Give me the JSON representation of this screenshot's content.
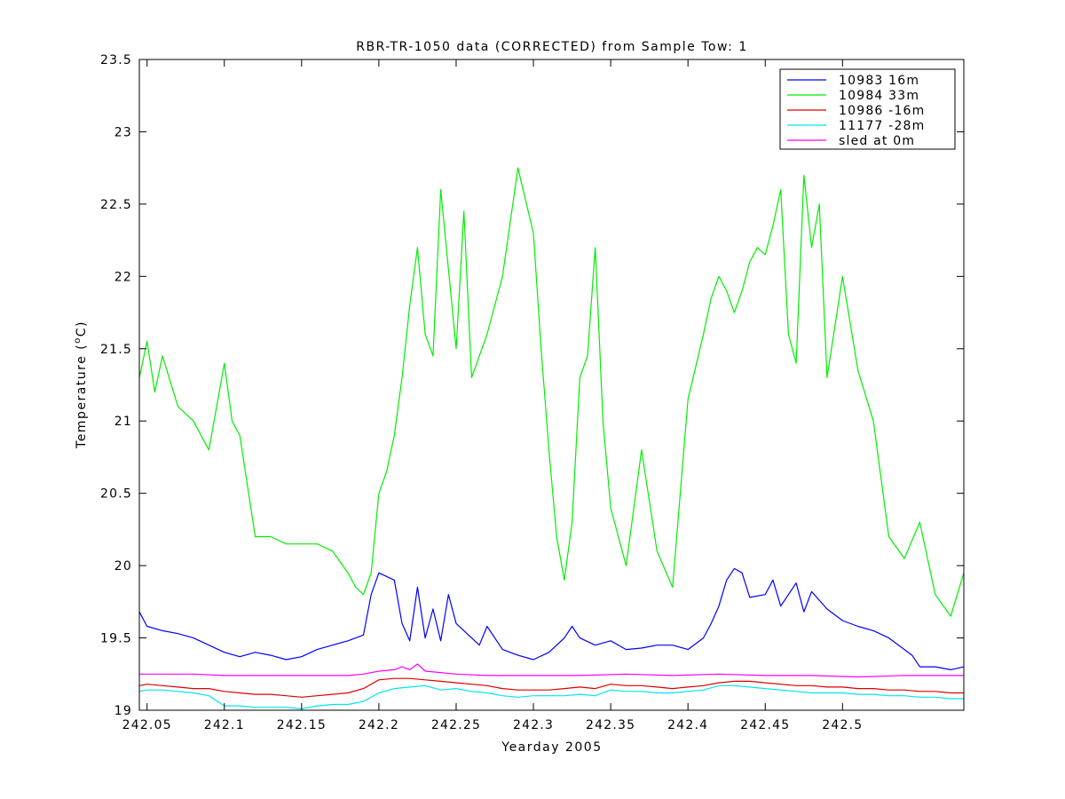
{
  "chart_data": {
    "type": "line",
    "title": "RBR-TR-1050 data (CORRECTED) from Sample Tow: 1",
    "xlabel": "Yearday 2005",
    "ylabel": "Temperature (°C)",
    "ylabel_parts": {
      "prefix": "Temperature (",
      "sup": "o",
      "suffix": "C)"
    },
    "xlim": [
      242.045,
      242.5785
    ],
    "ylim": [
      19,
      23.5
    ],
    "xticks": [
      242.05,
      242.1,
      242.15,
      242.2,
      242.25,
      242.3,
      242.35,
      242.4,
      242.45,
      242.5
    ],
    "xtick_labels": [
      "242.05",
      "242.1",
      "242.15",
      "242.2",
      "242.25",
      "242.3",
      "242.35",
      "242.4",
      "242.45",
      "242.5"
    ],
    "yticks": [
      19,
      19.5,
      20,
      20.5,
      21,
      21.5,
      22,
      22.5,
      23,
      23.5
    ],
    "ytick_labels": [
      "19",
      "19.5",
      "20",
      "20.5",
      "21",
      "21.5",
      "22",
      "22.5",
      "23",
      "23.5"
    ],
    "grid": false,
    "legend_position": "top-right",
    "series": [
      {
        "name": "10983 16m",
        "color": "#0000ff",
        "x": [
          242.045,
          242.05,
          242.06,
          242.07,
          242.08,
          242.09,
          242.1,
          242.11,
          242.12,
          242.13,
          242.14,
          242.15,
          242.16,
          242.17,
          242.18,
          242.19,
          242.195,
          242.2,
          242.21,
          242.215,
          242.22,
          242.225,
          242.23,
          242.235,
          242.24,
          242.245,
          242.25,
          242.26,
          242.265,
          242.27,
          242.28,
          242.29,
          242.3,
          242.31,
          242.32,
          242.325,
          242.33,
          242.34,
          242.35,
          242.36,
          242.37,
          242.38,
          242.39,
          242.4,
          242.41,
          242.415,
          242.42,
          242.425,
          242.43,
          242.435,
          242.44,
          242.45,
          242.455,
          242.46,
          242.47,
          242.475,
          242.48,
          242.49,
          242.5,
          242.51,
          242.52,
          242.53,
          242.54,
          242.545,
          242.55,
          242.56,
          242.57,
          242.5785
        ],
        "y": [
          19.68,
          19.58,
          19.55,
          19.53,
          19.5,
          19.45,
          19.4,
          19.37,
          19.4,
          19.38,
          19.35,
          19.37,
          19.42,
          19.45,
          19.48,
          19.52,
          19.8,
          19.95,
          19.9,
          19.6,
          19.48,
          19.85,
          19.5,
          19.7,
          19.48,
          19.8,
          19.6,
          19.5,
          19.45,
          19.58,
          19.42,
          19.38,
          19.35,
          19.4,
          19.5,
          19.58,
          19.5,
          19.45,
          19.48,
          19.42,
          19.43,
          19.45,
          19.45,
          19.42,
          19.5,
          19.6,
          19.72,
          19.9,
          19.98,
          19.95,
          19.78,
          19.8,
          19.9,
          19.72,
          19.88,
          19.68,
          19.82,
          19.7,
          19.62,
          19.58,
          19.55,
          19.5,
          19.42,
          19.38,
          19.3,
          19.3,
          19.28,
          19.3
        ]
      },
      {
        "name": "10984 33m",
        "color": "#00ee00",
        "x": [
          242.045,
          242.05,
          242.055,
          242.06,
          242.07,
          242.08,
          242.09,
          242.1,
          242.105,
          242.11,
          242.12,
          242.13,
          242.14,
          242.15,
          242.16,
          242.17,
          242.18,
          242.185,
          242.19,
          242.195,
          242.2,
          242.205,
          242.21,
          242.215,
          242.22,
          242.225,
          242.23,
          242.235,
          242.24,
          242.245,
          242.25,
          242.255,
          242.26,
          242.27,
          242.28,
          242.29,
          242.3,
          242.305,
          242.31,
          242.315,
          242.32,
          242.325,
          242.33,
          242.335,
          242.34,
          242.345,
          242.35,
          242.36,
          242.37,
          242.38,
          242.39,
          242.4,
          242.41,
          242.415,
          242.42,
          242.425,
          242.43,
          242.435,
          242.44,
          242.445,
          242.45,
          242.455,
          242.46,
          242.465,
          242.47,
          242.475,
          242.48,
          242.485,
          242.49,
          242.5,
          242.51,
          242.52,
          242.53,
          242.54,
          242.55,
          242.56,
          242.57,
          242.5785
        ],
        "y": [
          21.3,
          21.55,
          21.2,
          21.45,
          21.1,
          21.0,
          20.8,
          21.4,
          21.0,
          20.9,
          20.2,
          20.2,
          20.15,
          20.15,
          20.15,
          20.1,
          19.95,
          19.85,
          19.8,
          19.95,
          20.5,
          20.65,
          20.9,
          21.3,
          21.8,
          22.2,
          21.6,
          21.45,
          22.6,
          22.05,
          21.5,
          22.45,
          21.3,
          21.6,
          22.0,
          22.75,
          22.3,
          21.5,
          20.8,
          20.2,
          19.9,
          20.3,
          21.3,
          21.45,
          22.2,
          21.0,
          20.4,
          20.0,
          20.8,
          20.1,
          19.85,
          21.15,
          21.6,
          21.85,
          22.0,
          21.9,
          21.75,
          21.9,
          22.1,
          22.2,
          22.15,
          22.35,
          22.6,
          21.6,
          21.4,
          22.7,
          22.2,
          22.5,
          21.3,
          22.0,
          21.35,
          21.0,
          20.2,
          20.05,
          20.3,
          19.8,
          19.65,
          19.95
        ]
      },
      {
        "name": "10986 -16m",
        "color": "#dd0000",
        "x": [
          242.045,
          242.05,
          242.06,
          242.07,
          242.08,
          242.09,
          242.1,
          242.11,
          242.12,
          242.13,
          242.14,
          242.15,
          242.16,
          242.17,
          242.18,
          242.19,
          242.2,
          242.21,
          242.22,
          242.23,
          242.24,
          242.25,
          242.26,
          242.27,
          242.28,
          242.29,
          242.3,
          242.31,
          242.32,
          242.33,
          242.34,
          242.35,
          242.36,
          242.37,
          242.38,
          242.39,
          242.4,
          242.41,
          242.42,
          242.43,
          242.44,
          242.45,
          242.46,
          242.47,
          242.48,
          242.49,
          242.5,
          242.51,
          242.52,
          242.53,
          242.54,
          242.55,
          242.56,
          242.57,
          242.5785
        ],
        "y": [
          19.17,
          19.18,
          19.17,
          19.16,
          19.15,
          19.15,
          19.13,
          19.12,
          19.11,
          19.11,
          19.1,
          19.09,
          19.1,
          19.11,
          19.12,
          19.15,
          19.21,
          19.22,
          19.22,
          19.21,
          19.2,
          19.19,
          19.18,
          19.17,
          19.15,
          19.14,
          19.14,
          19.14,
          19.15,
          19.16,
          19.15,
          19.18,
          19.17,
          19.17,
          19.16,
          19.15,
          19.16,
          19.17,
          19.19,
          19.2,
          19.2,
          19.19,
          19.18,
          19.17,
          19.17,
          19.16,
          19.16,
          19.15,
          19.15,
          19.14,
          19.14,
          19.13,
          19.13,
          19.12,
          19.12
        ]
      },
      {
        "name": "11177 -28m",
        "color": "#00e5ee",
        "x": [
          242.045,
          242.05,
          242.06,
          242.07,
          242.08,
          242.09,
          242.1,
          242.11,
          242.12,
          242.13,
          242.14,
          242.15,
          242.16,
          242.17,
          242.18,
          242.19,
          242.2,
          242.21,
          242.22,
          242.23,
          242.24,
          242.25,
          242.26,
          242.27,
          242.28,
          242.29,
          242.3,
          242.31,
          242.32,
          242.33,
          242.34,
          242.35,
          242.36,
          242.37,
          242.38,
          242.39,
          242.4,
          242.41,
          242.42,
          242.43,
          242.44,
          242.45,
          242.46,
          242.47,
          242.48,
          242.49,
          242.5,
          242.51,
          242.52,
          242.53,
          242.54,
          242.55,
          242.56,
          242.57,
          242.5785
        ],
        "y": [
          19.13,
          19.14,
          19.14,
          19.13,
          19.12,
          19.1,
          19.03,
          19.03,
          19.02,
          19.02,
          19.02,
          19.01,
          19.03,
          19.04,
          19.04,
          19.06,
          19.12,
          19.15,
          19.16,
          19.17,
          19.14,
          19.15,
          19.13,
          19.12,
          19.1,
          19.09,
          19.1,
          19.1,
          19.1,
          19.11,
          19.1,
          19.14,
          19.13,
          19.13,
          19.12,
          19.12,
          19.13,
          19.14,
          19.17,
          19.17,
          19.16,
          19.15,
          19.14,
          19.13,
          19.12,
          19.12,
          19.12,
          19.11,
          19.11,
          19.1,
          19.1,
          19.09,
          19.09,
          19.08,
          19.08
        ]
      },
      {
        "name": "sled at 0m",
        "color": "#ff00ff",
        "x": [
          242.045,
          242.06,
          242.08,
          242.1,
          242.12,
          242.14,
          242.16,
          242.18,
          242.19,
          242.2,
          242.21,
          242.215,
          242.22,
          242.225,
          242.23,
          242.24,
          242.25,
          242.27,
          242.3,
          242.33,
          242.36,
          242.39,
          242.42,
          242.45,
          242.48,
          242.51,
          242.54,
          242.57,
          242.5785
        ],
        "y": [
          19.25,
          19.25,
          19.25,
          19.24,
          19.24,
          19.24,
          19.24,
          19.24,
          19.25,
          19.27,
          19.28,
          19.3,
          19.28,
          19.32,
          19.27,
          19.26,
          19.25,
          19.24,
          19.24,
          19.24,
          19.25,
          19.24,
          19.25,
          19.24,
          19.24,
          19.23,
          19.24,
          19.24,
          19.24
        ]
      }
    ]
  }
}
